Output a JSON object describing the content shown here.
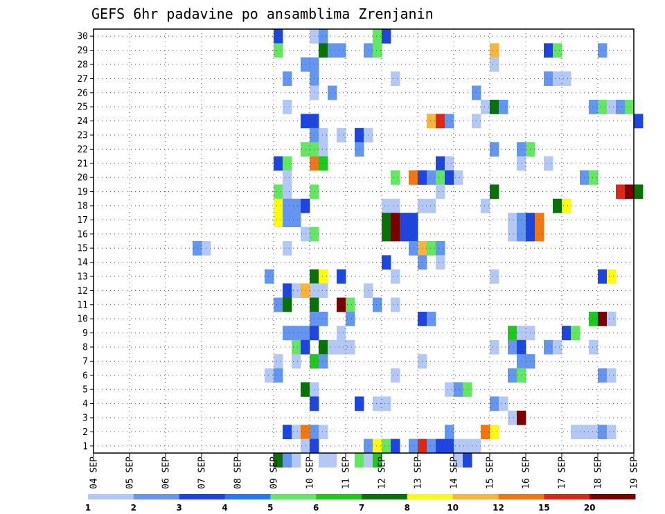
{
  "chart_data": {
    "type": "heatmap",
    "title": "GEFS 6hr padavine po ansamblima Zrenjanin",
    "x_tick_labels": [
      "04 SEP",
      "05 SEP",
      "06 SEP",
      "07 SEP",
      "08 SEP",
      "09 SEP",
      "10 SEP",
      "11 SEP",
      "12 SEP",
      "13 SEP",
      "14 SEP",
      "15 SEP",
      "16 SEP",
      "17 SEP",
      "18 SEP",
      "19 SEP"
    ],
    "x_steps_per_day": 4,
    "y_tick_labels": [
      "1",
      "2",
      "3",
      "4",
      "5",
      "6",
      "7",
      "8",
      "9",
      "10",
      "11",
      "12",
      "13",
      "14",
      "15",
      "16",
      "17",
      "18",
      "19",
      "20",
      "21",
      "22",
      "23",
      "24",
      "25",
      "26",
      "27",
      "28",
      "29",
      "30"
    ],
    "grid": true,
    "colorbar": {
      "levels": [
        "1",
        "2",
        "3",
        "4",
        "5",
        "6",
        "7",
        "8",
        "10",
        "12",
        "15",
        "20"
      ],
      "colors": [
        "#b4c8f5",
        "#6496f0",
        "#1e46dc",
        "#2878f0",
        "#64e664",
        "#1ec81e",
        "#0a700a",
        "#fafa14",
        "#fab43c",
        "#f07814",
        "#dc2814",
        "#780000"
      ]
    },
    "cells": [
      {
        "m": 30,
        "s": [
          [
            20,
            2,
            0
          ],
          [
            24,
            0
          ],
          [
            25,
            1
          ],
          [
            31,
            4
          ],
          [
            32,
            2
          ]
        ]
      },
      {
        "m": 29,
        "s": [
          [
            20,
            4
          ],
          [
            25,
            6
          ],
          [
            26,
            1,
            1
          ],
          [
            30,
            1
          ],
          [
            31,
            4
          ],
          [
            44,
            8
          ],
          [
            50,
            2
          ],
          [
            51,
            4
          ],
          [
            56,
            1
          ]
        ]
      },
      {
        "m": 28,
        "s": [
          [
            23,
            1,
            1
          ],
          [
            44,
            0
          ]
        ]
      },
      {
        "m": 27,
        "s": [
          [
            21,
            1
          ],
          [
            24,
            1
          ],
          [
            33,
            0
          ],
          [
            50,
            1
          ],
          [
            51,
            0,
            1
          ]
        ]
      },
      {
        "m": 26,
        "s": [
          [
            24,
            0
          ],
          [
            26,
            1
          ],
          [
            42,
            1
          ]
        ]
      },
      {
        "m": 25,
        "s": [
          [
            21,
            0
          ],
          [
            43,
            0
          ],
          [
            44,
            6
          ],
          [
            45,
            1
          ],
          [
            55,
            1
          ],
          [
            56,
            4
          ],
          [
            57,
            0
          ],
          [
            58,
            1
          ],
          [
            59,
            4
          ]
        ]
      },
      {
        "m": 24,
        "s": [
          [
            23,
            2,
            1
          ],
          [
            37,
            8
          ],
          [
            38,
            10
          ],
          [
            39,
            1
          ],
          [
            42,
            0
          ],
          [
            60,
            2
          ]
        ]
      },
      {
        "m": 23,
        "s": [
          [
            24,
            1
          ],
          [
            25,
            0
          ],
          [
            27,
            0
          ],
          [
            29,
            2
          ],
          [
            30,
            0
          ]
        ]
      },
      {
        "m": 22,
        "s": [
          [
            23,
            4,
            1
          ],
          [
            25,
            0
          ],
          [
            29,
            1
          ],
          [
            44,
            1
          ],
          [
            47,
            1
          ],
          [
            48,
            4
          ]
        ]
      },
      {
        "m": 21,
        "s": [
          [
            20,
            2
          ],
          [
            21,
            4
          ],
          [
            24,
            9
          ],
          [
            25,
            5
          ],
          [
            38,
            2
          ],
          [
            39,
            0
          ],
          [
            47,
            0
          ],
          [
            50,
            0
          ]
        ]
      },
      {
        "m": 20,
        "s": [
          [
            21,
            0
          ],
          [
            33,
            4
          ],
          [
            35,
            9
          ],
          [
            36,
            2
          ],
          [
            37,
            1
          ],
          [
            38,
            4
          ],
          [
            39,
            2
          ],
          [
            40,
            0
          ],
          [
            54,
            1
          ],
          [
            55,
            4
          ]
        ]
      },
      {
        "m": 19,
        "s": [
          [
            20,
            4
          ],
          [
            21,
            0
          ],
          [
            24,
            4
          ],
          [
            38,
            0
          ],
          [
            44,
            6
          ],
          [
            58,
            10
          ],
          [
            59,
            11
          ],
          [
            60,
            6
          ]
        ]
      },
      {
        "m": 18,
        "s": [
          [
            20,
            7
          ],
          [
            21,
            1,
            1
          ],
          [
            23,
            2
          ],
          [
            32,
            0,
            1
          ],
          [
            36,
            0,
            1
          ],
          [
            43,
            0
          ],
          [
            51,
            6
          ],
          [
            52,
            7
          ]
        ]
      },
      {
        "m": 17,
        "s": [
          [
            20,
            7
          ],
          [
            21,
            1,
            1
          ],
          [
            32,
            6
          ],
          [
            33,
            11
          ],
          [
            34,
            2,
            1
          ],
          [
            46,
            0
          ],
          [
            47,
            1
          ],
          [
            48,
            2
          ],
          [
            49,
            9
          ]
        ]
      },
      {
        "m": 16,
        "s": [
          [
            23,
            0
          ],
          [
            24,
            4
          ],
          [
            32,
            6
          ],
          [
            33,
            11
          ],
          [
            34,
            2,
            1
          ],
          [
            46,
            0
          ],
          [
            47,
            1
          ],
          [
            48,
            2
          ],
          [
            49,
            9
          ]
        ]
      },
      {
        "m": 15,
        "s": [
          [
            11,
            1
          ],
          [
            12,
            0
          ],
          [
            21,
            0
          ],
          [
            35,
            1
          ],
          [
            36,
            8
          ],
          [
            37,
            4
          ],
          [
            38,
            1
          ]
        ]
      },
      {
        "m": 14,
        "s": [
          [
            32,
            2
          ],
          [
            36,
            1
          ],
          [
            38,
            0
          ]
        ]
      },
      {
        "m": 13,
        "s": [
          [
            19,
            1
          ],
          [
            24,
            6
          ],
          [
            25,
            7
          ],
          [
            27,
            2
          ],
          [
            33,
            0
          ],
          [
            44,
            0
          ],
          [
            56,
            2
          ],
          [
            57,
            7
          ]
        ]
      },
      {
        "m": 12,
        "s": [
          [
            21,
            2
          ],
          [
            22,
            0
          ],
          [
            23,
            8
          ],
          [
            24,
            0,
            1
          ],
          [
            30,
            0
          ]
        ]
      },
      {
        "m": 11,
        "s": [
          [
            20,
            1
          ],
          [
            21,
            6
          ],
          [
            24,
            6
          ],
          [
            27,
            11
          ],
          [
            28,
            4
          ],
          [
            31,
            1
          ],
          [
            33,
            0
          ]
        ]
      },
      {
        "m": 10,
        "s": [
          [
            24,
            1,
            1
          ],
          [
            28,
            1
          ],
          [
            36,
            2
          ],
          [
            37,
            1
          ],
          [
            55,
            5
          ],
          [
            56,
            11
          ],
          [
            57,
            0
          ]
        ]
      },
      {
        "m": 9,
        "s": [
          [
            21,
            1,
            2
          ],
          [
            24,
            2
          ],
          [
            27,
            0
          ],
          [
            46,
            5
          ],
          [
            47,
            0,
            1
          ],
          [
            52,
            2
          ],
          [
            53,
            4
          ]
        ]
      },
      {
        "m": 8,
        "s": [
          [
            22,
            4
          ],
          [
            23,
            2
          ],
          [
            25,
            6
          ],
          [
            26,
            0
          ],
          [
            27,
            0,
            1
          ],
          [
            44,
            0
          ],
          [
            46,
            1
          ],
          [
            47,
            2
          ],
          [
            50,
            1
          ],
          [
            51,
            0
          ],
          [
            55,
            0
          ]
        ]
      },
      {
        "m": 7,
        "s": [
          [
            20,
            0
          ],
          [
            22,
            0
          ],
          [
            24,
            5
          ],
          [
            25,
            1
          ],
          [
            36,
            0
          ],
          [
            47,
            1
          ],
          [
            48,
            1
          ]
        ]
      },
      {
        "m": 6,
        "s": [
          [
            19,
            0
          ],
          [
            20,
            1
          ],
          [
            33,
            0
          ],
          [
            46,
            1
          ],
          [
            47,
            4
          ],
          [
            56,
            1
          ],
          [
            57,
            0
          ]
        ]
      },
      {
        "m": 5,
        "s": [
          [
            23,
            6
          ],
          [
            24,
            0
          ],
          [
            39,
            0
          ],
          [
            40,
            1
          ],
          [
            41,
            4
          ]
        ]
      },
      {
        "m": 4,
        "s": [
          [
            24,
            2
          ],
          [
            29,
            2
          ],
          [
            31,
            0,
            1
          ],
          [
            44,
            1
          ],
          [
            45,
            0
          ]
        ]
      },
      {
        "m": 3,
        "s": [
          [
            46,
            0
          ],
          [
            47,
            11
          ]
        ]
      },
      {
        "m": 2,
        "s": [
          [
            21,
            2
          ],
          [
            22,
            0
          ],
          [
            23,
            9
          ],
          [
            24,
            1
          ],
          [
            25,
            0
          ],
          [
            39,
            1
          ],
          [
            43,
            9
          ],
          [
            44,
            7
          ],
          [
            53,
            0,
            2
          ],
          [
            56,
            1
          ],
          [
            57,
            0
          ]
        ]
      },
      {
        "m": 1,
        "s": [
          [
            23,
            0
          ],
          [
            24,
            2
          ],
          [
            30,
            1
          ],
          [
            31,
            7
          ],
          [
            32,
            4
          ],
          [
            33,
            2
          ],
          [
            35,
            1
          ],
          [
            36,
            10
          ],
          [
            37,
            1
          ],
          [
            38,
            2,
            1
          ],
          [
            40,
            0
          ],
          [
            41,
            0,
            1
          ]
        ]
      },
      {
        "m": 0,
        "s": [
          [
            20,
            6
          ],
          [
            21,
            1
          ],
          [
            22,
            0
          ],
          [
            25,
            0,
            1
          ],
          [
            29,
            4
          ],
          [
            30,
            0
          ],
          [
            31,
            5
          ],
          [
            40,
            0
          ],
          [
            41,
            2
          ]
        ]
      }
    ]
  }
}
